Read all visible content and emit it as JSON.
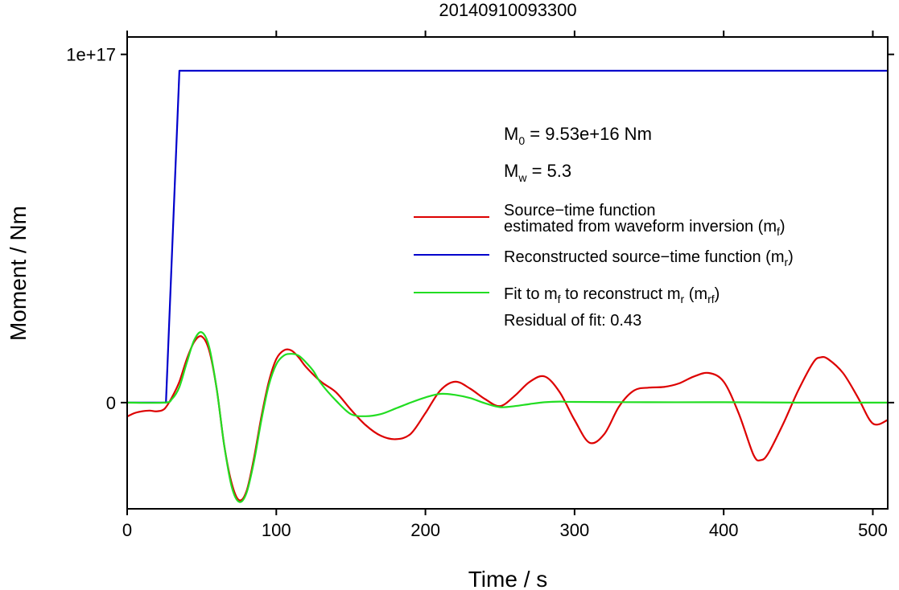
{
  "chart_data": {
    "type": "line",
    "title": "20140910093300",
    "xlabel": "Time / s",
    "ylabel": "Moment / Nm",
    "xlim": [
      0,
      510
    ],
    "ylim": [
      -3.05e+16,
      1.05e+17
    ],
    "x_ticks": [
      0,
      100,
      200,
      300,
      400,
      500
    ],
    "x_tick_labels": [
      "0",
      "100",
      "200",
      "300",
      "400",
      "500"
    ],
    "y_ticks": [
      0,
      1e+17
    ],
    "y_tick_labels": [
      "0",
      "1e+17"
    ],
    "grid": false,
    "legend_position": "top-right",
    "annotations": {
      "m0_prefix": "M",
      "m0_sub": "0",
      "m0_value": " = 9.53e+16 Nm",
      "mw_prefix": "M",
      "mw_sub": "w",
      "mw_value": " = 5.3",
      "residual": "Residual of fit: 0.43"
    },
    "legend": [
      {
        "line1": "Source−time function",
        "line2": "estimated from waveform inversion (m",
        "sub": "f",
        "tail": ")",
        "color": "#dd0000"
      },
      {
        "line1": "Reconstructed source−time function (m",
        "sub": "r",
        "tail": ")",
        "color": "#0000cc"
      },
      {
        "line1": "Fit to m",
        "sub1": "f",
        "mid": " to reconstruct m",
        "sub2": "r",
        "mid2": " (m",
        "sub3": "rf",
        "tail": ")",
        "color": "#22dd22"
      }
    ],
    "series": [
      {
        "key": "mf",
        "color": "#dd0000",
        "x": [
          0,
          5,
          10,
          15,
          20,
          25,
          30,
          35,
          40,
          45,
          50,
          55,
          60,
          65,
          70,
          75,
          80,
          85,
          90,
          95,
          100,
          105,
          110,
          115,
          120,
          130,
          140,
          150,
          160,
          170,
          180,
          190,
          200,
          210,
          220,
          230,
          240,
          250,
          260,
          270,
          280,
          290,
          300,
          310,
          320,
          330,
          340,
          350,
          360,
          370,
          380,
          390,
          400,
          410,
          420,
          425,
          430,
          440,
          450,
          460,
          465,
          470,
          480,
          490,
          500,
          510
        ],
        "y": [
          -4000000000000000.0,
          -3000000000000000.0,
          -2500000000000000.0,
          -2300000000000000.0,
          -2500000000000000.0,
          -1800000000000000.0,
          1500000000000000.0,
          6000000000000000.0,
          1.25e+16,
          1.75e+16,
          1.9e+16,
          1.5e+16,
          4000000000000000.0,
          -1.2e+16,
          -2.3e+16,
          -2.8e+16,
          -2.55e+16,
          -1.6e+16,
          -4000000000000000.0,
          6000000000000000.0,
          1.25e+16,
          1.5e+16,
          1.5e+16,
          1.3e+16,
          1.02e+16,
          6000000000000000.0,
          3000000000000000.0,
          -2000000000000000.0,
          -6500000000000000.0,
          -9500000000000000.0,
          -1.05e+16,
          -9000000000000000.0,
          -3000000000000000.0,
          3500000000000000.0,
          6000000000000000.0,
          4000000000000000.0,
          1000000000000000.0,
          -1000000000000000.0,
          2000000000000000.0,
          6000000000000000.0,
          7500000000000000.0,
          3000000000000000.0,
          -5000000000000000.0,
          -1.15e+16,
          -9000000000000000.0,
          -1000000000000000.0,
          3500000000000000.0,
          4300000000000000.0,
          4500000000000000.0,
          5500000000000000.0,
          7500000000000000.0,
          8500000000000000.0,
          6000000000000000.0,
          -3000000000000000.0,
          -1.5e+16,
          -1.65e+16,
          -1.45e+16,
          -6000000000000000.0,
          3500000000000000.0,
          1.15e+16,
          1.3e+16,
          1.25e+16,
          8500000000000000.0,
          1500000000000000.0,
          -6000000000000000.0,
          -5000000000000000.0
        ]
      },
      {
        "key": "mr",
        "color": "#0000cc",
        "x": [
          0,
          26,
          35,
          510
        ],
        "y": [
          0,
          0,
          9.53e+16,
          9.53e+16
        ]
      },
      {
        "key": "mrf",
        "color": "#22dd22",
        "x": [
          0,
          25,
          30,
          35,
          40,
          45,
          50,
          55,
          60,
          65,
          70,
          75,
          80,
          85,
          90,
          95,
          100,
          105,
          110,
          115,
          120,
          125,
          130,
          140,
          150,
          160,
          170,
          180,
          190,
          200,
          210,
          220,
          230,
          240,
          250,
          260,
          270,
          280,
          290,
          300,
          350,
          400,
          450,
          500,
          510
        ],
        "y": [
          0,
          0,
          1000000000000000.0,
          4500000000000000.0,
          1.15e+16,
          1.8e+16,
          2.02e+16,
          1.6e+16,
          4000000000000000.0,
          -1.2e+16,
          -2.4e+16,
          -2.85e+16,
          -2.6e+16,
          -1.7e+16,
          -5000000000000000.0,
          5000000000000000.0,
          1.1e+16,
          1.35e+16,
          1.4e+16,
          1.35e+16,
          1.15e+16,
          9000000000000000.0,
          5500000000000000.0,
          600000000000000.0,
          -3300000000000000.0,
          -3900000000000000.0,
          -3300000000000000.0,
          -1700000000000000.0,
          0,
          1500000000000000.0,
          2500000000000000.0,
          2200000000000000.0,
          1300000000000000.0,
          -200000000000000.0,
          -1300000000000000.0,
          -1000000000000000.0,
          -400000000000000.0,
          100000000000000.0,
          300000000000000.0,
          200000000000000.0,
          100000000000000.0,
          100000000000000.0,
          0,
          0,
          0
        ]
      }
    ]
  }
}
